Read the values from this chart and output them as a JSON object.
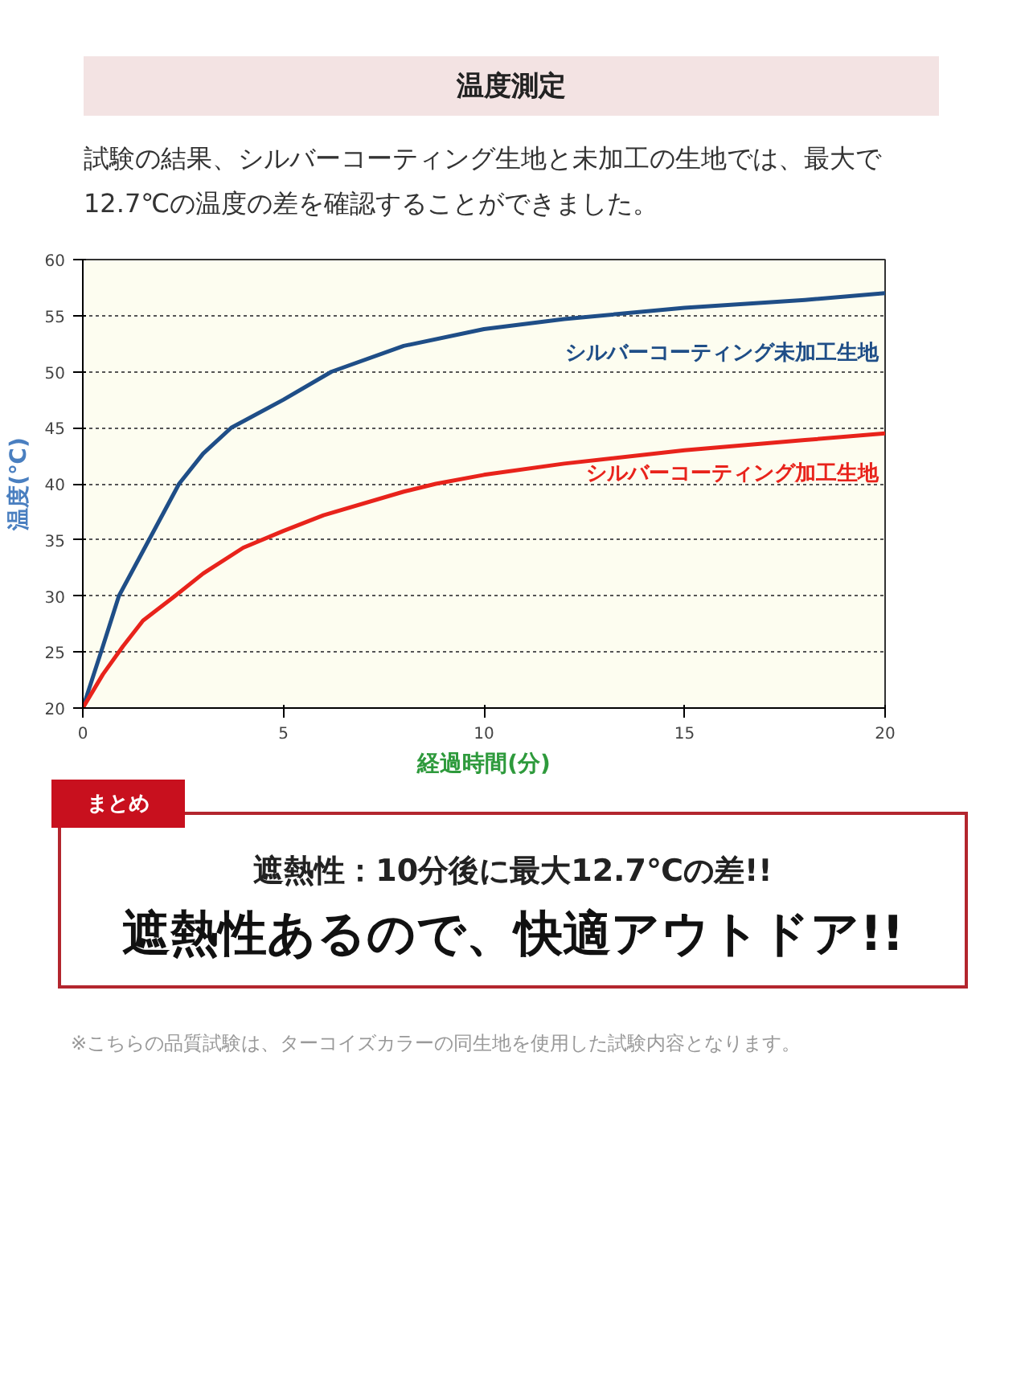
{
  "chart_data": {
    "type": "line",
    "title": "温度測定",
    "subtitle": "試験の結果、シルバーコーティング生地と未加工の生地では、最大で12.7℃の温度の差を確認することができました。",
    "xlabel": "経過時間(分)",
    "ylabel": "温度(℃)",
    "xlim": [
      0,
      20
    ],
    "xticks": [
      0,
      5,
      10,
      15,
      20
    ],
    "ylim": [
      20,
      60
    ],
    "yticks": [
      20,
      25,
      30,
      35,
      40,
      45,
      50,
      55,
      60
    ],
    "grid": "y",
    "line_style": "solid",
    "marker": "none",
    "series": [
      {
        "name": "シルバーコーティング未加工生地",
        "color": "#1f4e87",
        "x": [
          0,
          0.5,
          0.9,
          1.5,
          2.4,
          3,
          3.7,
          5,
          6.2,
          8,
          10,
          12,
          15,
          18,
          20
        ],
        "values": [
          20,
          25.5,
          30,
          34,
          40,
          42.7,
          45,
          47.5,
          50,
          52.3,
          53.8,
          54.7,
          55.7,
          56.4,
          57
        ]
      },
      {
        "name": "シルバーコーティング加工生地",
        "color": "#e8231b",
        "x": [
          0,
          0.5,
          1,
          1.5,
          2.3,
          3,
          4,
          5,
          6,
          8,
          8.8,
          10,
          12,
          15,
          18,
          20
        ],
        "values": [
          20,
          23,
          25.5,
          27.8,
          30,
          32,
          34.3,
          35.8,
          37.2,
          39.3,
          40,
          40.8,
          41.8,
          43,
          43.9,
          44.5
        ]
      }
    ],
    "annotations": [
      "まとめ",
      "遮熱性：10分後に最大12.7℃の差!!",
      "遮熱性あるので、快適アウトドア!!",
      "※こちらの品質試験は、ターコイズカラーの同生地を使用した試験内容となります。"
    ]
  }
}
